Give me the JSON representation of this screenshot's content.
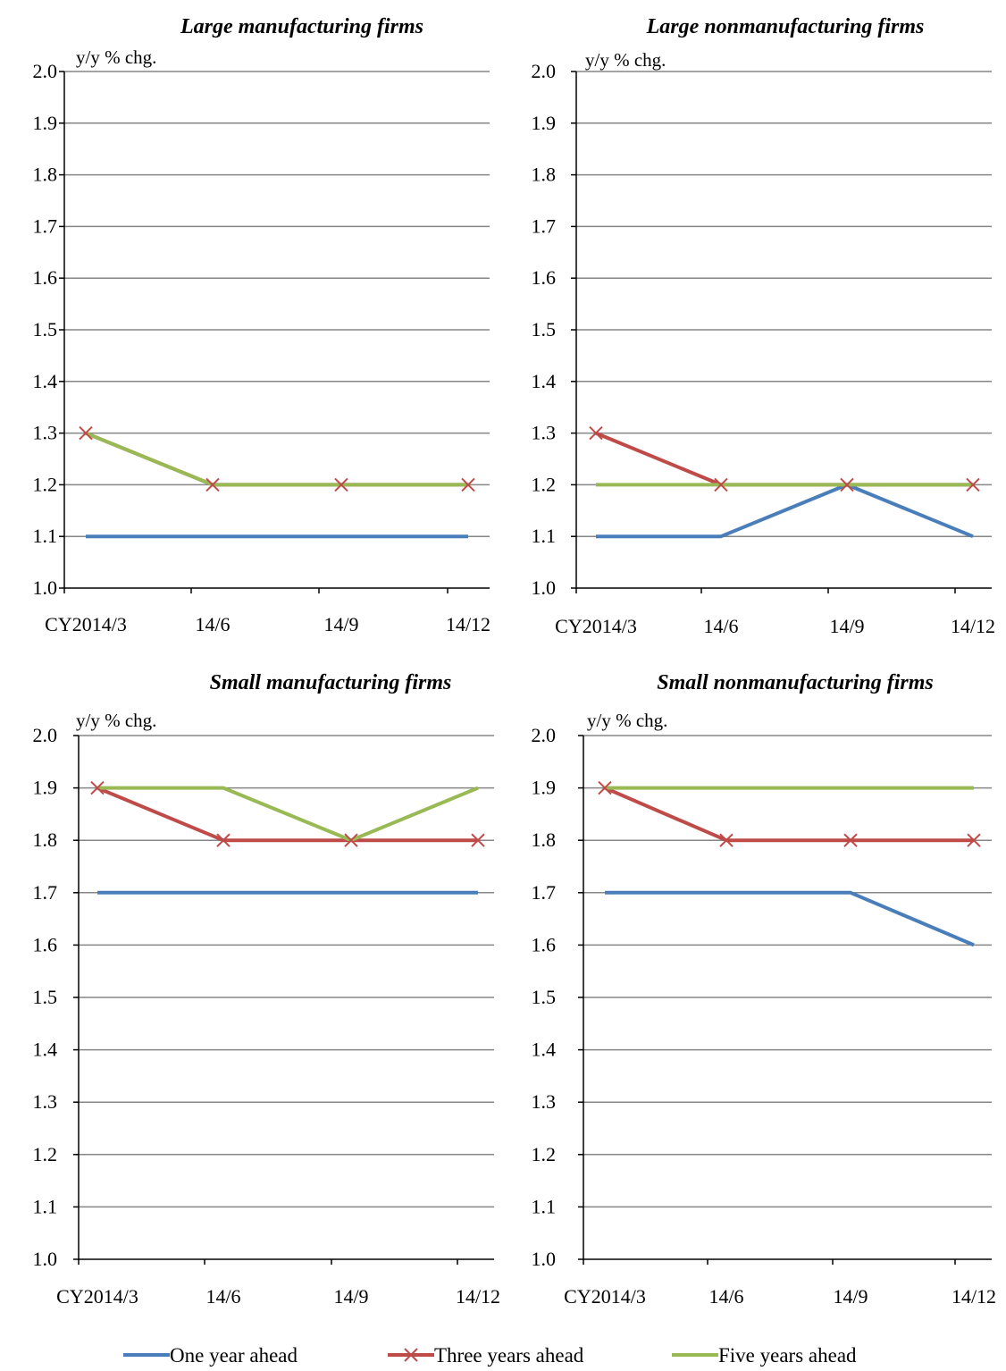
{
  "colors": {
    "one_year": "#4a7ebb",
    "three_years": "#be4b48",
    "five_years": "#98b954",
    "grid": "#868686",
    "axis": "#000000"
  },
  "chart_data": [
    {
      "type": "line",
      "title": "Large manufacturing firms",
      "ylabel": "y/y % chg.",
      "categories": [
        "CY2014/3",
        "14/6",
        "14/9",
        "14/12"
      ],
      "ylim": [
        1.0,
        2.0
      ],
      "yticks": [
        "1.0",
        "1.1",
        "1.2",
        "1.3",
        "1.4",
        "1.5",
        "1.6",
        "1.7",
        "1.8",
        "1.9",
        "2.0"
      ],
      "series": [
        {
          "name": "One year ahead",
          "values": [
            1.1,
            1.1,
            1.1,
            1.1
          ]
        },
        {
          "name": "Three years ahead",
          "values": [
            1.3,
            1.2,
            1.2,
            1.2
          ]
        },
        {
          "name": "Five years ahead",
          "values": [
            1.3,
            1.2,
            1.2,
            1.2
          ]
        }
      ],
      "grid": true
    },
    {
      "type": "line",
      "title": "Large nonmanufacturing firms",
      "ylabel": "y/y % chg.",
      "categories": [
        "CY2014/3",
        "14/6",
        "14/9",
        "14/12"
      ],
      "ylim": [
        1.0,
        2.0
      ],
      "yticks": [
        "1.0",
        "1.1",
        "1.2",
        "1.3",
        "1.4",
        "1.5",
        "1.6",
        "1.7",
        "1.8",
        "1.9",
        "2.0"
      ],
      "series": [
        {
          "name": "One year ahead",
          "values": [
            1.1,
            1.1,
            1.2,
            1.1
          ]
        },
        {
          "name": "Three years ahead",
          "values": [
            1.3,
            1.2,
            1.2,
            1.2
          ]
        },
        {
          "name": "Five years ahead",
          "values": [
            1.2,
            1.2,
            1.2,
            1.2
          ]
        }
      ],
      "grid": true
    },
    {
      "type": "line",
      "title": "Small manufacturing firms",
      "ylabel": "y/y % chg.",
      "categories": [
        "CY2014/3",
        "14/6",
        "14/9",
        "14/12"
      ],
      "ylim": [
        1.0,
        2.0
      ],
      "yticks": [
        "1.0",
        "1.1",
        "1.2",
        "1.3",
        "1.4",
        "1.5",
        "1.6",
        "1.7",
        "1.8",
        "1.9",
        "2.0"
      ],
      "series": [
        {
          "name": "One year ahead",
          "values": [
            1.7,
            1.7,
            1.7,
            1.7
          ]
        },
        {
          "name": "Three years ahead",
          "values": [
            1.9,
            1.8,
            1.8,
            1.8
          ]
        },
        {
          "name": "Five years ahead",
          "values": [
            1.9,
            1.9,
            1.8,
            1.9
          ]
        }
      ],
      "grid": true
    },
    {
      "type": "line",
      "title": "Small nonmanufacturing firms",
      "ylabel": "y/y % chg.",
      "categories": [
        "CY2014/3",
        "14/6",
        "14/9",
        "14/12"
      ],
      "ylim": [
        1.0,
        2.0
      ],
      "yticks": [
        "1.0",
        "1.1",
        "1.2",
        "1.3",
        "1.4",
        "1.5",
        "1.6",
        "1.7",
        "1.8",
        "1.9",
        "2.0"
      ],
      "series": [
        {
          "name": "One year ahead",
          "values": [
            1.7,
            1.7,
            1.7,
            1.6
          ]
        },
        {
          "name": "Three years ahead",
          "values": [
            1.9,
            1.8,
            1.8,
            1.8
          ]
        },
        {
          "name": "Five years ahead",
          "values": [
            1.9,
            1.9,
            1.9,
            1.9
          ]
        }
      ],
      "grid": true
    }
  ],
  "legend": {
    "position": "bottom",
    "items": [
      {
        "label": "One year ahead",
        "marker": "none"
      },
      {
        "label": "Three years ahead",
        "marker": "x"
      },
      {
        "label": "Five years ahead",
        "marker": "none"
      }
    ]
  }
}
